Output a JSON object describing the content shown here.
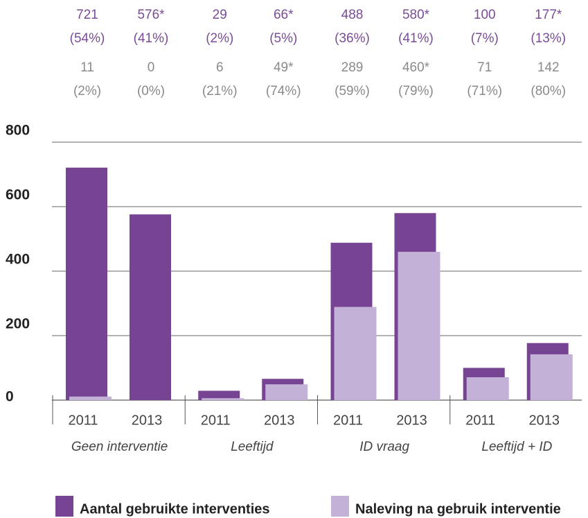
{
  "chart_data": {
    "type": "bar",
    "categories": [
      "2011",
      "2013",
      "2011",
      "2013",
      "2011",
      "2013",
      "2011",
      "2013"
    ],
    "groups": [
      "Geen interventie",
      "Leeftijd",
      "ID vraag",
      "Leeftijd + ID"
    ],
    "series": [
      {
        "name": "Aantal gebruikte interventies",
        "color": "#764493",
        "values": [
          721,
          576,
          29,
          66,
          488,
          580,
          100,
          177
        ],
        "value_labels": [
          "721",
          "576*",
          "29",
          "66*",
          "488",
          "580*",
          "100",
          "177*"
        ],
        "shares": [
          "(54%)",
          "(41%)",
          "(2%)",
          "(5%)",
          "(36%)",
          "(41%)",
          "(7%)",
          "(13%)"
        ]
      },
      {
        "name": "Naleving na gebruik interventie",
        "color": "#c3b1d8",
        "values": [
          11,
          0,
          6,
          49,
          289,
          460,
          71,
          142
        ],
        "value_labels": [
          "11",
          "0",
          "6",
          "49*",
          "289",
          "460*",
          "71",
          "142"
        ],
        "shares": [
          "(2%)",
          "(0%)",
          "(21%)",
          "(74%)",
          "(59%)",
          "(79%)",
          "(71%)",
          "(80%)"
        ]
      }
    ],
    "ylim": [
      0,
      800
    ],
    "yticks": [
      0,
      200,
      400,
      600,
      800
    ],
    "grid": true
  }
}
